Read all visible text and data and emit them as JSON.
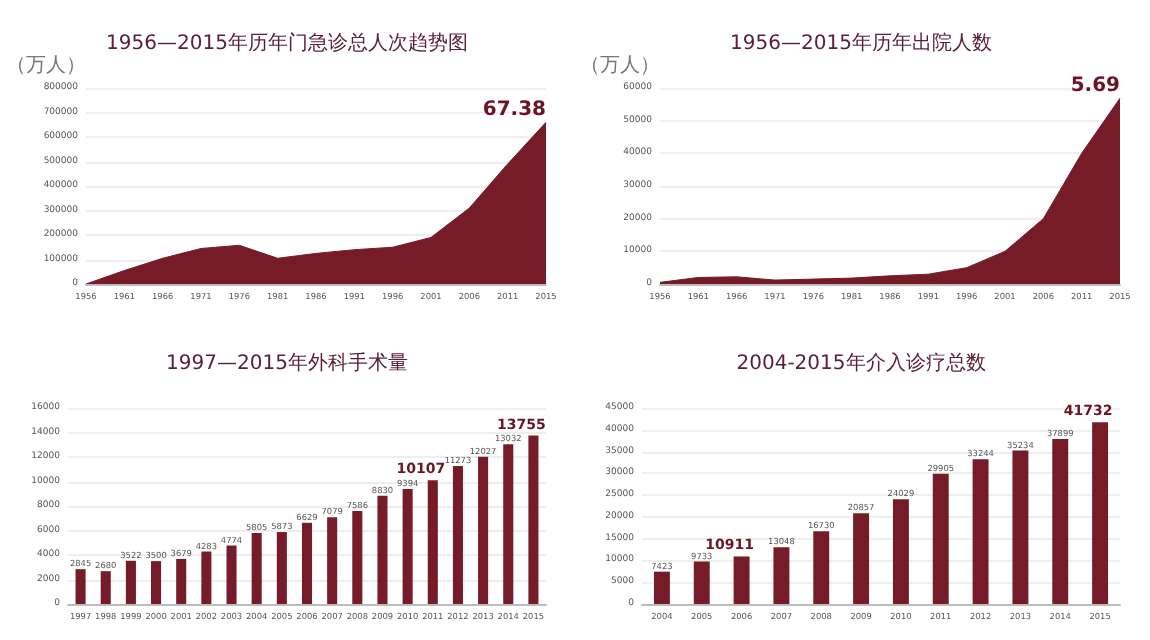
{
  "chart_data": [
    {
      "type": "area",
      "title": "1956—2015年历年门急诊总人次趋势图",
      "ylabel": "（万人）",
      "categories": [
        "1956",
        "1961",
        "1966",
        "1971",
        "1976",
        "1981",
        "1986",
        "1991",
        "1996",
        "2001",
        "2006",
        "2011",
        "2015"
      ],
      "values": [
        0,
        55000,
        105000,
        145000,
        158000,
        105000,
        125000,
        140000,
        150000,
        190000,
        310000,
        490000,
        660000
      ],
      "color": "#761c28",
      "ylim": [
        0,
        800000
      ],
      "yticks": [
        0,
        100000,
        200000,
        300000,
        400000,
        500000,
        600000,
        700000,
        800000
      ],
      "grid": "y",
      "annotations": [
        {
          "text": "67.38",
          "x": "2015",
          "y": 660000
        }
      ]
    },
    {
      "type": "area",
      "title": "1956—2015年历年出院人数",
      "ylabel": "（万人）",
      "categories": [
        "1956",
        "1961",
        "1966",
        "1971",
        "1976",
        "1981",
        "1986",
        "1991",
        "1996",
        "2001",
        "2006",
        "2011",
        "2015"
      ],
      "values": [
        500,
        2000,
        2200,
        1200,
        1500,
        1800,
        2500,
        3000,
        5000,
        10000,
        20000,
        40000,
        56900
      ],
      "color": "#761c28",
      "ylim": [
        0,
        60000
      ],
      "yticks": [
        0,
        10000,
        20000,
        30000,
        40000,
        50000,
        60000
      ],
      "grid": "y",
      "annotations": [
        {
          "text": "5.69",
          "x": "2015",
          "y": 56900
        }
      ]
    },
    {
      "type": "bar",
      "title": "1997—2015年外科手术量",
      "categories": [
        "1997",
        "1998",
        "1999",
        "2000",
        "2001",
        "2002",
        "2003",
        "2004",
        "2005",
        "2006",
        "2007",
        "2008",
        "2009",
        "2010",
        "2011",
        "2012",
        "2013",
        "2014",
        "2015"
      ],
      "values": [
        2845,
        2680,
        3522,
        3500,
        3679,
        4283,
        4774,
        5805,
        5873,
        6629,
        7079,
        7586,
        8830,
        9394,
        10107,
        11273,
        12027,
        13032,
        13755
      ],
      "value_labels": [
        "2845",
        "2680",
        "3522",
        "3500",
        "3679",
        "4283",
        "4774",
        "5805",
        "5873",
        "6629",
        "7079",
        "7586",
        "8830",
        "9394",
        null,
        "11273",
        "12027",
        "13032",
        null
      ],
      "color": "#761c28",
      "ylim": [
        0,
        16000
      ],
      "yticks": [
        0,
        2000,
        4000,
        6000,
        8000,
        10000,
        12000,
        14000,
        16000
      ],
      "grid": "y",
      "annotations": [
        {
          "text": "10107",
          "x": "2011",
          "y": 10107
        },
        {
          "text": "13755",
          "x": "2015",
          "y": 13755
        }
      ]
    },
    {
      "type": "bar",
      "title": "2004-2015年介入诊疗总数",
      "categories": [
        "2004",
        "2005",
        "2006",
        "2007",
        "2008",
        "2009",
        "2010",
        "2011",
        "2012",
        "2013",
        "2014",
        "2015"
      ],
      "values": [
        7423,
        9733,
        10911,
        13048,
        16730,
        20857,
        24029,
        29905,
        33244,
        35234,
        37899,
        41732
      ],
      "value_labels": [
        "7423",
        "9733",
        null,
        "13048",
        "16730",
        "20857",
        "24029",
        "29905",
        "33244",
        "35234",
        "37899",
        null
      ],
      "color": "#761c28",
      "ylim": [
        0,
        45000
      ],
      "yticks": [
        0,
        5000,
        10000,
        15000,
        20000,
        25000,
        30000,
        35000,
        40000,
        45000
      ],
      "grid": "y",
      "annotations": [
        {
          "text": "10911",
          "x": "2006",
          "y": 10911
        },
        {
          "text": "41732",
          "x": "2015",
          "y": 41732
        }
      ]
    }
  ]
}
